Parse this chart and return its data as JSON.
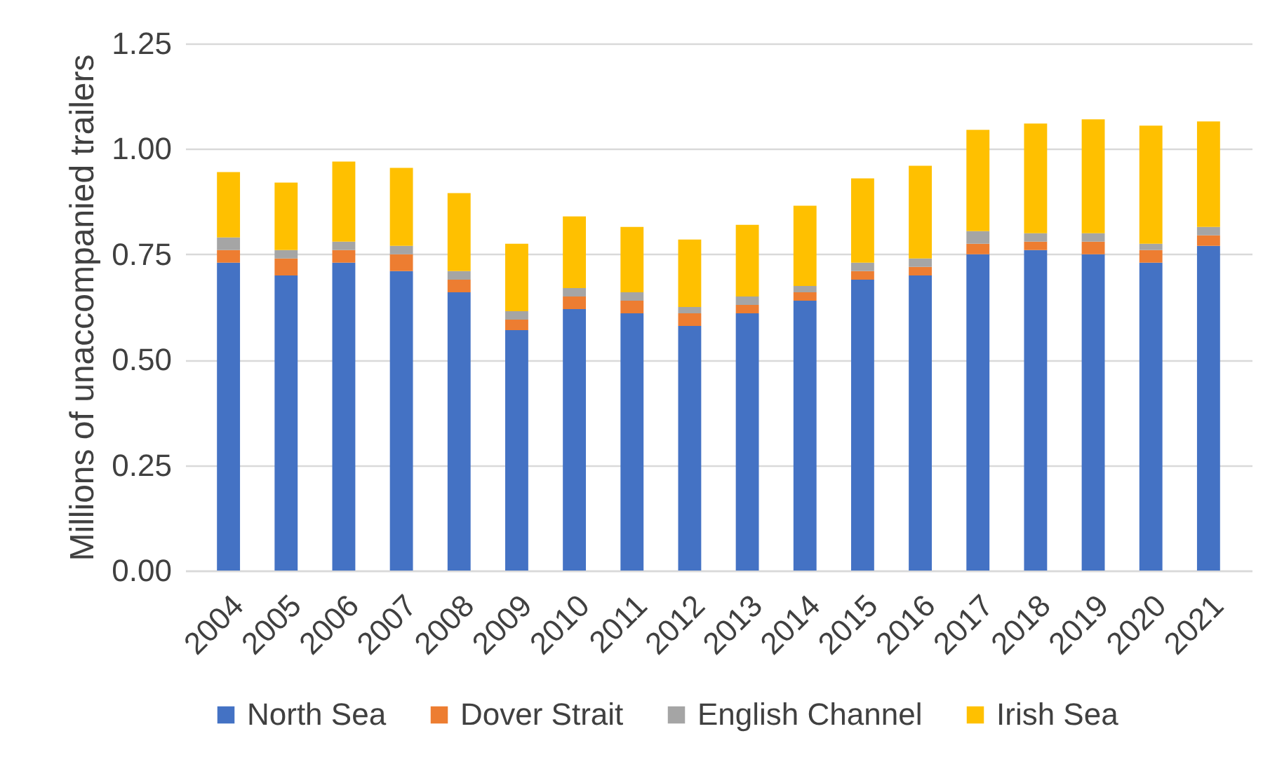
{
  "chart_data": {
    "type": "bar",
    "stacked": true,
    "ylabel": "Millions of unaccompanied trailers",
    "categories": [
      "2004",
      "2005",
      "2006",
      "2007",
      "2008",
      "2009",
      "2010",
      "2011",
      "2012",
      "2013",
      "2014",
      "2015",
      "2016",
      "2017",
      "2018",
      "2019",
      "2020",
      "2021"
    ],
    "series": [
      {
        "name": "North Sea",
        "color": "#4472c4",
        "values": [
          0.73,
          0.7,
          0.73,
          0.71,
          0.66,
          0.57,
          0.62,
          0.61,
          0.58,
          0.61,
          0.64,
          0.69,
          0.7,
          0.75,
          0.76,
          0.75,
          0.73,
          0.77
        ]
      },
      {
        "name": "Dover Strait",
        "color": "#ed7d31",
        "values": [
          0.03,
          0.04,
          0.03,
          0.04,
          0.03,
          0.025,
          0.03,
          0.03,
          0.03,
          0.02,
          0.02,
          0.02,
          0.02,
          0.025,
          0.02,
          0.03,
          0.03,
          0.025
        ]
      },
      {
        "name": "English Channel",
        "color": "#a5a5a5",
        "values": [
          0.03,
          0.02,
          0.02,
          0.02,
          0.02,
          0.02,
          0.02,
          0.02,
          0.015,
          0.02,
          0.015,
          0.02,
          0.02,
          0.03,
          0.02,
          0.02,
          0.015,
          0.02
        ]
      },
      {
        "name": "Irish Sea",
        "color": "#ffc000",
        "values": [
          0.155,
          0.16,
          0.19,
          0.185,
          0.185,
          0.16,
          0.17,
          0.155,
          0.16,
          0.17,
          0.19,
          0.2,
          0.22,
          0.24,
          0.26,
          0.27,
          0.28,
          0.25
        ]
      }
    ],
    "ylim": [
      0,
      1.25
    ],
    "yticks": [
      {
        "value": 0,
        "label": "0.00"
      },
      {
        "value": 0.25,
        "label": "0.25"
      },
      {
        "value": 0.5,
        "label": "0.50"
      },
      {
        "value": 0.75,
        "label": "0.75"
      },
      {
        "value": 1,
        "label": "1.00"
      },
      {
        "value": 1.25,
        "label": "1.25"
      }
    ],
    "grid": "y",
    "legend": "bottom"
  }
}
